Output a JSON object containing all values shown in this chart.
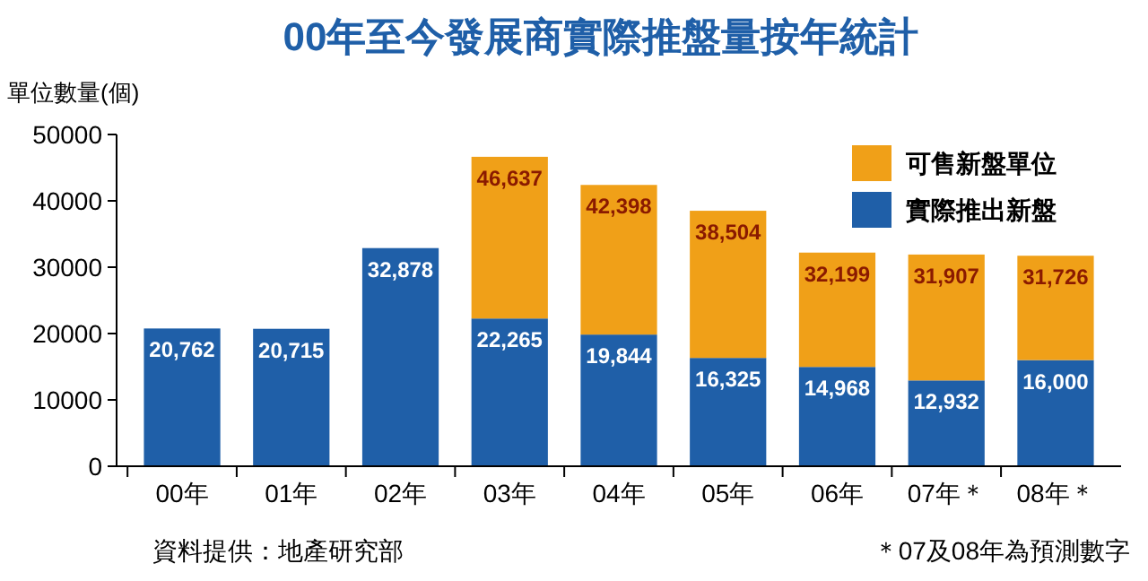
{
  "chart_data": {
    "type": "bar",
    "title": "00年至今發展商實際推盤量按年統計",
    "ylabel": "單位數量(個)",
    "categories": [
      "00年",
      "01年",
      "02年",
      "03年",
      "04年",
      "05年",
      "06年",
      "07年＊",
      "08年＊"
    ],
    "stacked": true,
    "ylim": [
      0,
      50000
    ],
    "yticks": [
      0,
      10000,
      20000,
      30000,
      40000,
      50000
    ],
    "grid": false,
    "legend": "top right",
    "series": [
      {
        "name": "實際推出新盤",
        "color": "#1f5fa8",
        "values": [
          20762,
          20715,
          32878,
          22265,
          19844,
          16325,
          14968,
          12932,
          16000
        ],
        "value_labels": [
          "20,762",
          "20,715",
          "32,878",
          "22,265",
          "19,844",
          "16,325",
          "14,968",
          "12,932",
          "16,000"
        ]
      },
      {
        "name": "可售新盤單位",
        "color": "#f0a018",
        "values": [
          null,
          null,
          null,
          24372,
          22554,
          22179,
          17231,
          18975,
          15726
        ]
      }
    ],
    "totals": [
      null,
      null,
      null,
      "46,637",
      "42,398",
      "38,504",
      "32,199",
      "31,907",
      "31,726"
    ],
    "annotations": [
      "資料提供：地產研究部",
      "＊07及08年為預測數字"
    ]
  }
}
